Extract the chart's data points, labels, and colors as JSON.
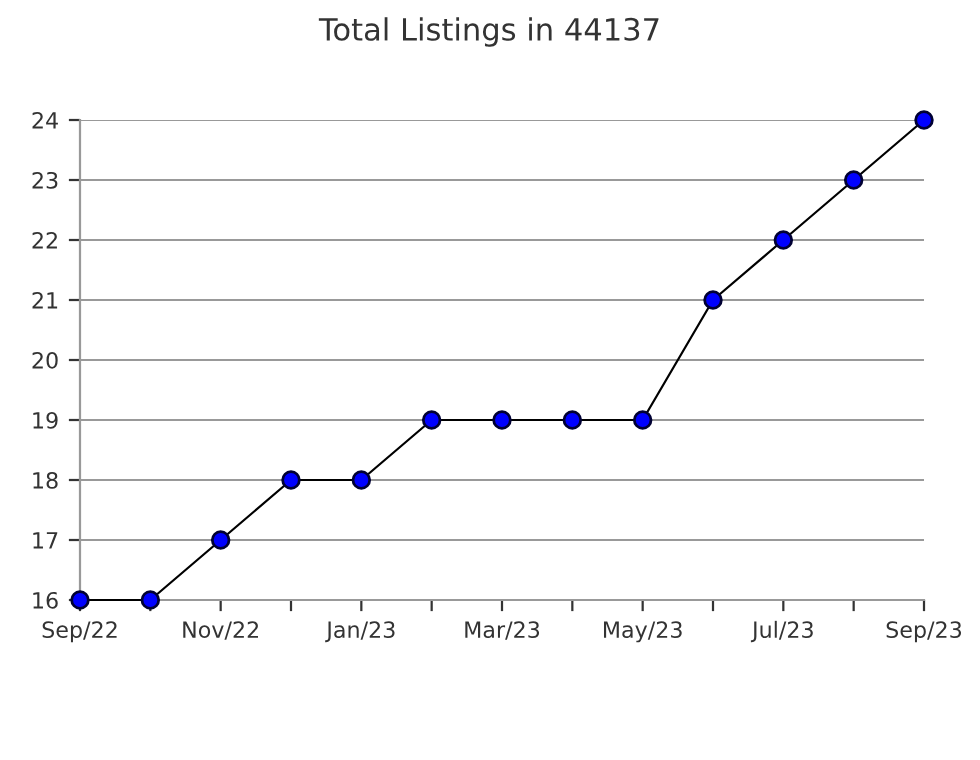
{
  "chart_data": {
    "type": "line",
    "title": "Total Listings in 44137",
    "categories": [
      "Sep/22",
      null,
      "Nov/22",
      null,
      "Jan/23",
      null,
      "Mar/23",
      null,
      "May/23",
      null,
      "Jul/23",
      null,
      "Sep/23"
    ],
    "series": [
      {
        "color": "#0000ff",
        "values": [
          16,
          16,
          17,
          18,
          18,
          19,
          19,
          19,
          19,
          21,
          22,
          23,
          24
        ]
      }
    ],
    "ylim": [
      16,
      24
    ],
    "yticks": [
      16,
      17,
      18,
      19,
      20,
      21,
      22,
      23,
      24
    ],
    "grid": "y",
    "marker": "circle",
    "line_style": "solid"
  }
}
